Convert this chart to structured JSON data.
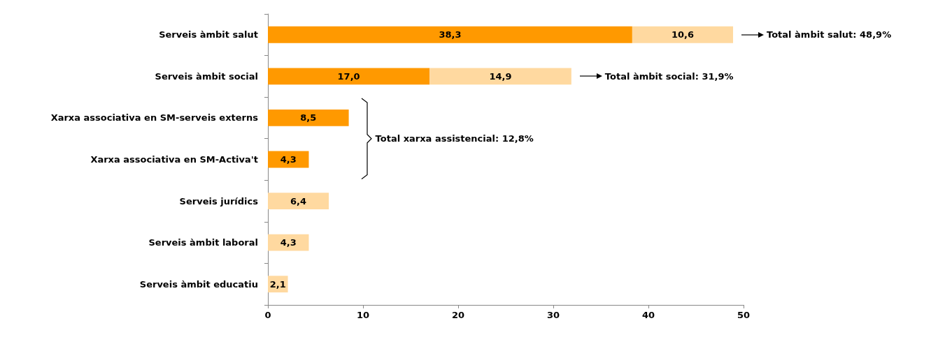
{
  "chart_data": {
    "type": "bar",
    "orientation": "horizontal",
    "stacked": true,
    "categories": [
      "Serveis àmbit salut",
      "Serveis àmbit social",
      "Xarxa associativa en SM-serveis externs",
      "Xarxa associativa en SM-Activa't",
      "Serveis jurídics",
      "Serveis àmbit laboral",
      "Serveis àmbit educatiu"
    ],
    "series": [
      {
        "color": "#ff9900",
        "values": [
          38.3,
          17.0,
          8.5,
          4.3,
          null,
          null,
          null
        ],
        "value_labels": [
          "38,3",
          "17,0",
          "8,5",
          "4,3",
          null,
          null,
          null
        ]
      },
      {
        "color": "#ffd9a0",
        "values": [
          10.6,
          14.9,
          null,
          null,
          6.4,
          4.3,
          2.1
        ],
        "value_labels": [
          "10,6",
          "14,9",
          null,
          null,
          "6,4",
          "4,3",
          "2,1"
        ]
      }
    ],
    "xlim": [
      0,
      50
    ],
    "xticks": [
      0,
      10,
      20,
      30,
      40,
      50
    ],
    "grid": false,
    "annotations": [
      "Total àmbit salut: 48,9%",
      "Total àmbit social: 31,9%",
      "Total xarxa assistencial: 12,8%"
    ]
  }
}
